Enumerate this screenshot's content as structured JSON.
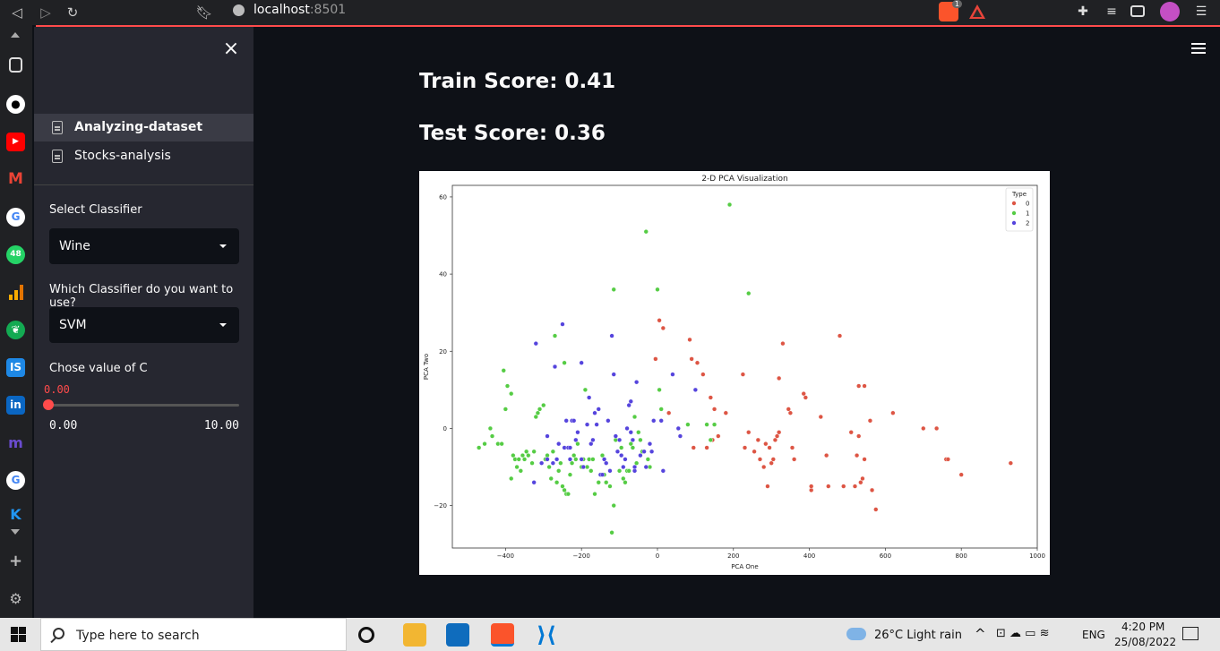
{
  "browser": {
    "host": "localhost",
    "port": ":8501",
    "brave_badge": "1"
  },
  "icon_strip": {
    "whatsapp_badge": "48",
    "items": [
      "bookmarks-icon",
      "github-icon",
      "youtube-icon",
      "gmail-icon",
      "google-icon",
      "whatsapp-icon",
      "analytics-icon",
      "mongodb-icon",
      "is-icon",
      "linkedin-icon",
      "m-icon",
      "google-icon",
      "k-icon",
      "add-icon",
      "settings-icon"
    ]
  },
  "sidebar": {
    "pages": [
      {
        "label": "Analyzing-dataset",
        "active": true
      },
      {
        "label": "Stocks-analysis",
        "active": false
      }
    ],
    "dataset_label": "Select Classifier",
    "dataset_value": "Wine",
    "classifier_label": "Which Classifier do you want to use?",
    "classifier_value": "SVM",
    "c_label": "Chose value of C",
    "c_value": "0.00",
    "c_min": "0.00",
    "c_max": "10.00",
    "c_fraction": 0
  },
  "main": {
    "train_score": "Train Score: 0.41",
    "test_score": "Test Score: 0.36"
  },
  "chart_data": {
    "type": "scatter",
    "title": "2-D PCA Visualization",
    "xlabel": "PCA One",
    "ylabel": "PCA Two",
    "xlim": [
      -540,
      1000
    ],
    "ylim": [
      -31,
      63
    ],
    "xticks": [
      -400,
      -200,
      0,
      200,
      400,
      600,
      800,
      1000
    ],
    "yticks": [
      -20,
      0,
      20,
      40,
      60
    ],
    "grid": false,
    "legend": {
      "title": "Type",
      "placement": "top-right"
    },
    "series": [
      {
        "name": "0",
        "color": "#dd5544",
        "points": [
          [
            5,
            28
          ],
          [
            15,
            26
          ],
          [
            85,
            23
          ],
          [
            105,
            17
          ],
          [
            120,
            14
          ],
          [
            90,
            18
          ],
          [
            140,
            8
          ],
          [
            150,
            5
          ],
          [
            160,
            -2
          ],
          [
            145,
            -3
          ],
          [
            180,
            4
          ],
          [
            225,
            14
          ],
          [
            240,
            -1
          ],
          [
            255,
            -6
          ],
          [
            265,
            -3
          ],
          [
            270,
            -8
          ],
          [
            280,
            -10
          ],
          [
            285,
            -4
          ],
          [
            290,
            -15
          ],
          [
            295,
            -5
          ],
          [
            300,
            -9
          ],
          [
            305,
            -8
          ],
          [
            310,
            -3
          ],
          [
            315,
            -2
          ],
          [
            320,
            13
          ],
          [
            320,
            -1
          ],
          [
            330,
            22
          ],
          [
            345,
            5
          ],
          [
            350,
            4
          ],
          [
            355,
            -5
          ],
          [
            360,
            -8
          ],
          [
            385,
            9
          ],
          [
            390,
            8
          ],
          [
            405,
            -16
          ],
          [
            405,
            -15
          ],
          [
            430,
            3
          ],
          [
            445,
            -7
          ],
          [
            450,
            -15
          ],
          [
            480,
            24
          ],
          [
            490,
            -15
          ],
          [
            510,
            -1
          ],
          [
            520,
            -15
          ],
          [
            525,
            -7
          ],
          [
            530,
            -2
          ],
          [
            530,
            11
          ],
          [
            535,
            -14
          ],
          [
            540,
            -13
          ],
          [
            545,
            -8
          ],
          [
            545,
            11
          ],
          [
            560,
            2
          ],
          [
            565,
            -16
          ],
          [
            575,
            -21
          ],
          [
            620,
            4
          ],
          [
            700,
            0
          ],
          [
            735,
            0
          ],
          [
            760,
            -8
          ],
          [
            765,
            -8
          ],
          [
            800,
            -12
          ],
          [
            930,
            -9
          ],
          [
            95,
            -5
          ],
          [
            130,
            -5
          ],
          [
            230,
            -5
          ],
          [
            60,
            -2
          ],
          [
            30,
            4
          ],
          [
            -5,
            18
          ]
        ]
      },
      {
        "name": "1",
        "color": "#55cc44",
        "points": [
          [
            -470,
            -5
          ],
          [
            -455,
            -4
          ],
          [
            -440,
            0
          ],
          [
            -435,
            -2
          ],
          [
            -420,
            -4
          ],
          [
            -410,
            -4
          ],
          [
            -405,
            15
          ],
          [
            -400,
            5
          ],
          [
            -395,
            11
          ],
          [
            -385,
            9
          ],
          [
            -385,
            -13
          ],
          [
            -380,
            -7
          ],
          [
            -375,
            -8
          ],
          [
            -370,
            -10
          ],
          [
            -365,
            -8
          ],
          [
            -360,
            -11
          ],
          [
            -355,
            -7
          ],
          [
            -350,
            -8
          ],
          [
            -345,
            -6
          ],
          [
            -340,
            -7
          ],
          [
            -330,
            -9
          ],
          [
            -325,
            -6
          ],
          [
            -320,
            3
          ],
          [
            -315,
            4
          ],
          [
            -310,
            5
          ],
          [
            -300,
            6
          ],
          [
            -295,
            -8
          ],
          [
            -290,
            -7
          ],
          [
            -285,
            -10
          ],
          [
            -280,
            -13
          ],
          [
            -275,
            -6
          ],
          [
            -270,
            24
          ],
          [
            -265,
            -14
          ],
          [
            -260,
            -11
          ],
          [
            -255,
            -9
          ],
          [
            -250,
            -15
          ],
          [
            -245,
            -16
          ],
          [
            -240,
            -17
          ],
          [
            -235,
            -17
          ],
          [
            -230,
            -12
          ],
          [
            -225,
            -9
          ],
          [
            -220,
            -7
          ],
          [
            -215,
            -8
          ],
          [
            -210,
            -4
          ],
          [
            -200,
            -10
          ],
          [
            -195,
            -8
          ],
          [
            -190,
            10
          ],
          [
            -185,
            -10
          ],
          [
            -180,
            -8
          ],
          [
            -175,
            -11
          ],
          [
            -170,
            -8
          ],
          [
            -165,
            -17
          ],
          [
            -155,
            -14
          ],
          [
            -150,
            -12
          ],
          [
            -145,
            -7
          ],
          [
            -140,
            -12
          ],
          [
            -135,
            -14
          ],
          [
            -125,
            -15
          ],
          [
            -120,
            -27
          ],
          [
            -115,
            -20
          ],
          [
            -115,
            36
          ],
          [
            -110,
            -3
          ],
          [
            -100,
            -11
          ],
          [
            -95,
            -5
          ],
          [
            -90,
            -13
          ],
          [
            -85,
            -14
          ],
          [
            -80,
            -11
          ],
          [
            -75,
            -11
          ],
          [
            -70,
            -4
          ],
          [
            -65,
            -5
          ],
          [
            -60,
            3
          ],
          [
            -55,
            -9
          ],
          [
            -50,
            -1
          ],
          [
            -45,
            -3
          ],
          [
            -40,
            -6
          ],
          [
            -30,
            51
          ],
          [
            -25,
            -8
          ],
          [
            -20,
            -10
          ],
          [
            0,
            36
          ],
          [
            5,
            10
          ],
          [
            10,
            5
          ],
          [
            80,
            1
          ],
          [
            130,
            1
          ],
          [
            140,
            -3
          ],
          [
            150,
            1
          ],
          [
            190,
            58
          ],
          [
            240,
            35
          ],
          [
            -245,
            17
          ]
        ]
      },
      {
        "name": "2",
        "color": "#5544dd",
        "points": [
          [
            -320,
            22
          ],
          [
            -305,
            -9
          ],
          [
            -290,
            -8
          ],
          [
            -275,
            -9
          ],
          [
            -270,
            16
          ],
          [
            -265,
            -8
          ],
          [
            -260,
            -4
          ],
          [
            -250,
            27
          ],
          [
            -245,
            -5
          ],
          [
            -240,
            2
          ],
          [
            -235,
            -5
          ],
          [
            -230,
            -8
          ],
          [
            -225,
            2
          ],
          [
            -220,
            2
          ],
          [
            -210,
            -1
          ],
          [
            -200,
            17
          ],
          [
            -200,
            -8
          ],
          [
            -195,
            -10
          ],
          [
            -185,
            1
          ],
          [
            -180,
            8
          ],
          [
            -175,
            -4
          ],
          [
            -170,
            -3
          ],
          [
            -165,
            4
          ],
          [
            -160,
            1
          ],
          [
            -155,
            5
          ],
          [
            -150,
            -12
          ],
          [
            -145,
            -12
          ],
          [
            -140,
            -8
          ],
          [
            -135,
            -9
          ],
          [
            -130,
            2
          ],
          [
            -125,
            -11
          ],
          [
            -120,
            24
          ],
          [
            -115,
            14
          ],
          [
            -110,
            -2
          ],
          [
            -105,
            -6
          ],
          [
            -100,
            -3
          ],
          [
            -95,
            -7
          ],
          [
            -90,
            -10
          ],
          [
            -85,
            -8
          ],
          [
            -80,
            0
          ],
          [
            -75,
            6
          ],
          [
            -70,
            7
          ],
          [
            -65,
            -3
          ],
          [
            -60,
            -11
          ],
          [
            -55,
            12
          ],
          [
            -45,
            -7
          ],
          [
            -35,
            -6
          ],
          [
            -30,
            -10
          ],
          [
            -20,
            -4
          ],
          [
            -15,
            -6
          ],
          [
            -10,
            2
          ],
          [
            10,
            2
          ],
          [
            15,
            -11
          ],
          [
            40,
            14
          ],
          [
            55,
            0
          ],
          [
            60,
            -2
          ],
          [
            100,
            10
          ],
          [
            -70,
            -1
          ],
          [
            -60,
            -10
          ],
          [
            -325,
            -14
          ],
          [
            -290,
            -2
          ],
          [
            -215,
            -3
          ],
          [
            -230,
            -5
          ]
        ]
      }
    ]
  }
}
